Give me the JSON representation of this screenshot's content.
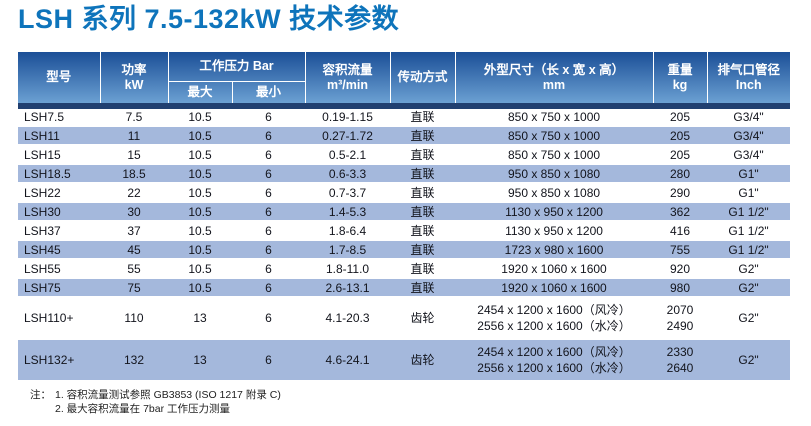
{
  "page": {
    "title": "LSH 系列 7.5-132kW 技术参数"
  },
  "colors": {
    "title_blue": "#0e74bb",
    "header_gradient_top": "#1b4f97",
    "header_gradient_bottom": "#70a5d6",
    "header_bottom_strip": "#203f70",
    "row_alt_blue": "#a4b8dc",
    "row_text": "#12141c"
  },
  "table": {
    "headers": {
      "model": "型号",
      "power_line1": "功率",
      "power_line2": "kW",
      "pressure_group": "工作压力 Bar",
      "pressure_max": "最大",
      "pressure_min": "最小",
      "flow_line1": "容积流量",
      "flow_line2": "m³/min",
      "drive": "传动方式",
      "dimensions_line1": "外型尺寸（长 x 宽 x 高）",
      "dimensions_line2": "mm",
      "weight_line1": "重量",
      "weight_line2": "kg",
      "outlet_line1": "排气口管径",
      "outlet_line2": "Inch"
    },
    "rows": [
      {
        "model": "LSH7.5",
        "power": "7.5",
        "pmax": "10.5",
        "pmin": "6",
        "flow": "0.19-1.15",
        "drive": "直联",
        "dims": "850 x 750 x 1000",
        "weight": "205",
        "outlet": "G3/4\""
      },
      {
        "model": "LSH11",
        "power": "11",
        "pmax": "10.5",
        "pmin": "6",
        "flow": "0.27-1.72",
        "drive": "直联",
        "dims": "850 x 750 x 1000",
        "weight": "205",
        "outlet": "G3/4\""
      },
      {
        "model": "LSH15",
        "power": "15",
        "pmax": "10.5",
        "pmin": "6",
        "flow": "0.5-2.1",
        "drive": "直联",
        "dims": "850 x 750 x 1000",
        "weight": "205",
        "outlet": "G3/4\""
      },
      {
        "model": "LSH18.5",
        "power": "18.5",
        "pmax": "10.5",
        "pmin": "6",
        "flow": "0.6-3.3",
        "drive": "直联",
        "dims": "950 x 850 x 1080",
        "weight": "280",
        "outlet": "G1\""
      },
      {
        "model": "LSH22",
        "power": "22",
        "pmax": "10.5",
        "pmin": "6",
        "flow": "0.7-3.7",
        "drive": "直联",
        "dims": "950 x 850 x 1080",
        "weight": "290",
        "outlet": "G1\""
      },
      {
        "model": "LSH30",
        "power": "30",
        "pmax": "10.5",
        "pmin": "6",
        "flow": "1.4-5.3",
        "drive": "直联",
        "dims": "1130 x 950 x 1200",
        "weight": "362",
        "outlet": "G1 1/2\""
      },
      {
        "model": "LSH37",
        "power": "37",
        "pmax": "10.5",
        "pmin": "6",
        "flow": "1.8-6.4",
        "drive": "直联",
        "dims": "1130 x 950 x 1200",
        "weight": "416",
        "outlet": "G1 1/2\""
      },
      {
        "model": "LSH45",
        "power": "45",
        "pmax": "10.5",
        "pmin": "6",
        "flow": "1.7-8.5",
        "drive": "直联",
        "dims": "1723 x 980 x 1600",
        "weight": "755",
        "outlet": "G1 1/2\""
      },
      {
        "model": "LSH55",
        "power": "55",
        "pmax": "10.5",
        "pmin": "6",
        "flow": "1.8-11.0",
        "drive": "直联",
        "dims": "1920 x 1060 x 1600",
        "weight": "920",
        "outlet": "G2\""
      },
      {
        "model": "LSH75",
        "power": "75",
        "pmax": "10.5",
        "pmin": "6",
        "flow": "2.6-13.1",
        "drive": "直联",
        "dims": "1920 x 1060 x 1600",
        "weight": "980",
        "outlet": "G2\""
      },
      {
        "model": "LSH110+",
        "power": "110",
        "pmax": "13",
        "pmin": "6",
        "flow": "4.1-20.3",
        "drive": "齿轮",
        "dims": [
          "2454 x 1200 x 1600（风冷）",
          "2556 x 1200 x 1600（水冷）"
        ],
        "weight": [
          "2070",
          "2490"
        ],
        "outlet": "G2\""
      },
      {
        "model": "LSH132+",
        "power": "132",
        "pmax": "13",
        "pmin": "6",
        "flow": "4.6-24.1",
        "drive": "齿轮",
        "dims": [
          "2454 x 1200 x 1600（风冷）",
          "2556 x 1200 x 1600（水冷）"
        ],
        "weight": [
          "2330",
          "2640"
        ],
        "outlet": "G2\""
      }
    ]
  },
  "notes": {
    "prefix": "注：",
    "items": [
      "1. 容积流量测试参照 GB3853 (ISO 1217 附录 C)",
      "2. 最大容积流量在 7bar 工作压力测量"
    ]
  }
}
